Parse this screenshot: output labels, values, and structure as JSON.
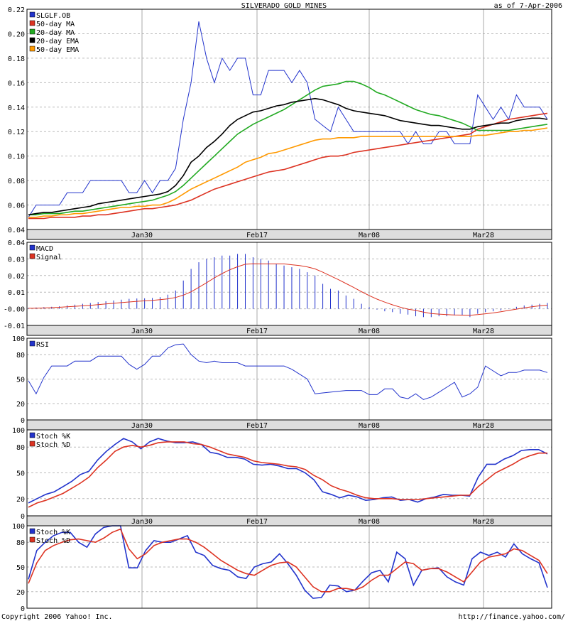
{
  "header": {
    "title": "SILVERADO GOLD MINES",
    "asof": "as of  7-Apr-2006"
  },
  "footer": {
    "copyright": "Copyright 2006 Yahoo! Inc.",
    "url": "http://finance.yahoo.com/"
  },
  "colors": {
    "price": "#2233cc",
    "ma50": "#dd3322",
    "ma20": "#22aa22",
    "ema20": "#000000",
    "ema50": "#ff9900",
    "macd": "#2233cc",
    "signal": "#dd3322",
    "stochK": "#2233cc",
    "stochD": "#dd3322",
    "rsi": "#2233cc"
  },
  "chart_data": [
    {
      "type": "line",
      "panel": "price",
      "xlabels": [
        "Jan30",
        "Feb17",
        "Mar08",
        "Mar28"
      ],
      "ylim": [
        0.04,
        0.22
      ],
      "yticks": [
        "0.22",
        "0.20",
        "0.18",
        "0.16",
        "0.14",
        "0.12",
        "0.10",
        "0.08",
        "0.06",
        "0.04"
      ],
      "series": [
        {
          "name": "SLGLF.OB",
          "key": "price",
          "values": [
            0.05,
            0.06,
            0.06,
            0.06,
            0.06,
            0.07,
            0.07,
            0.07,
            0.08,
            0.08,
            0.08,
            0.08,
            0.08,
            0.07,
            0.07,
            0.08,
            0.07,
            0.08,
            0.08,
            0.09,
            0.13,
            0.16,
            0.21,
            0.18,
            0.16,
            0.18,
            0.17,
            0.18,
            0.18,
            0.15,
            0.15,
            0.17,
            0.17,
            0.17,
            0.16,
            0.17,
            0.16,
            0.13,
            0.125,
            0.12,
            0.14,
            0.13,
            0.12,
            0.12,
            0.12,
            0.12,
            0.12,
            0.12,
            0.12,
            0.11,
            0.12,
            0.11,
            0.11,
            0.12,
            0.12,
            0.11,
            0.11,
            0.11,
            0.15,
            0.14,
            0.13,
            0.14,
            0.13,
            0.15,
            0.14,
            0.14,
            0.14,
            0.13
          ]
        },
        {
          "name": "50-day MA",
          "key": "ma50",
          "values": [
            0.049,
            0.049,
            0.049,
            0.05,
            0.05,
            0.05,
            0.05,
            0.051,
            0.051,
            0.052,
            0.052,
            0.053,
            0.054,
            0.055,
            0.056,
            0.057,
            0.057,
            0.058,
            0.059,
            0.06,
            0.062,
            0.064,
            0.067,
            0.07,
            0.073,
            0.075,
            0.077,
            0.079,
            0.081,
            0.083,
            0.085,
            0.087,
            0.088,
            0.089,
            0.091,
            0.093,
            0.095,
            0.097,
            0.099,
            0.1,
            0.1,
            0.101,
            0.103,
            0.104,
            0.105,
            0.106,
            0.107,
            0.108,
            0.109,
            0.11,
            0.111,
            0.112,
            0.113,
            0.114,
            0.115,
            0.116,
            0.117,
            0.118,
            0.122,
            0.124,
            0.126,
            0.128,
            0.13,
            0.131,
            0.132,
            0.133,
            0.134,
            0.135
          ]
        },
        {
          "name": "20-day MA",
          "key": "ma20",
          "values": [
            0.052,
            0.052,
            0.053,
            0.053,
            0.053,
            0.054,
            0.055,
            0.055,
            0.056,
            0.057,
            0.058,
            0.059,
            0.06,
            0.061,
            0.062,
            0.063,
            0.064,
            0.066,
            0.068,
            0.071,
            0.076,
            0.082,
            0.088,
            0.094,
            0.1,
            0.106,
            0.112,
            0.118,
            0.122,
            0.126,
            0.129,
            0.132,
            0.135,
            0.138,
            0.142,
            0.146,
            0.15,
            0.154,
            0.157,
            0.158,
            0.159,
            0.161,
            0.161,
            0.159,
            0.156,
            0.152,
            0.15,
            0.147,
            0.144,
            0.141,
            0.138,
            0.136,
            0.134,
            0.133,
            0.131,
            0.129,
            0.127,
            0.124,
            0.121,
            0.121,
            0.121,
            0.121,
            0.121,
            0.122,
            0.123,
            0.124,
            0.125,
            0.126
          ]
        },
        {
          "name": "20-day EMA",
          "key": "ema20",
          "values": [
            0.052,
            0.053,
            0.054,
            0.054,
            0.055,
            0.056,
            0.057,
            0.058,
            0.059,
            0.061,
            0.062,
            0.063,
            0.064,
            0.065,
            0.066,
            0.067,
            0.068,
            0.069,
            0.071,
            0.076,
            0.084,
            0.095,
            0.1,
            0.107,
            0.112,
            0.118,
            0.125,
            0.13,
            0.133,
            0.136,
            0.137,
            0.139,
            0.141,
            0.142,
            0.144,
            0.145,
            0.146,
            0.147,
            0.146,
            0.144,
            0.142,
            0.139,
            0.137,
            0.136,
            0.135,
            0.134,
            0.133,
            0.131,
            0.129,
            0.128,
            0.127,
            0.126,
            0.125,
            0.125,
            0.124,
            0.123,
            0.122,
            0.122,
            0.124,
            0.125,
            0.126,
            0.127,
            0.127,
            0.129,
            0.13,
            0.131,
            0.131,
            0.13
          ]
        },
        {
          "name": "50-day EMA",
          "key": "ema50",
          "values": [
            0.05,
            0.05,
            0.051,
            0.051,
            0.052,
            0.052,
            0.053,
            0.053,
            0.054,
            0.055,
            0.056,
            0.057,
            0.058,
            0.058,
            0.059,
            0.059,
            0.06,
            0.06,
            0.062,
            0.065,
            0.069,
            0.073,
            0.076,
            0.079,
            0.082,
            0.085,
            0.088,
            0.091,
            0.095,
            0.097,
            0.099,
            0.102,
            0.103,
            0.105,
            0.107,
            0.109,
            0.111,
            0.113,
            0.114,
            0.114,
            0.115,
            0.115,
            0.115,
            0.116,
            0.116,
            0.116,
            0.116,
            0.116,
            0.116,
            0.116,
            0.116,
            0.116,
            0.116,
            0.116,
            0.116,
            0.116,
            0.116,
            0.116,
            0.117,
            0.117,
            0.118,
            0.119,
            0.12,
            0.12,
            0.121,
            0.121,
            0.122,
            0.123
          ]
        }
      ]
    },
    {
      "type": "line",
      "panel": "macd",
      "xlabels": [
        "Jan30",
        "Feb17",
        "Mar08",
        "Mar28"
      ],
      "ylim": [
        -0.01,
        0.04
      ],
      "yticks": [
        "0.04",
        "0.03",
        "0.02",
        "0.01",
        "-0.00",
        "-0.01"
      ],
      "series": [
        {
          "name": "MACD",
          "key": "macd",
          "kind": "bars",
          "values": [
            0.0005,
            0.0008,
            0.001,
            0.0012,
            0.0015,
            0.002,
            0.0025,
            0.003,
            0.0035,
            0.004,
            0.0045,
            0.005,
            0.0055,
            0.006,
            0.0062,
            0.0063,
            0.0065,
            0.007,
            0.0085,
            0.011,
            0.017,
            0.024,
            0.028,
            0.03,
            0.031,
            0.032,
            0.032,
            0.033,
            0.033,
            0.031,
            0.03,
            0.029,
            0.027,
            0.026,
            0.025,
            0.024,
            0.022,
            0.02,
            0.015,
            0.012,
            0.011,
            0.008,
            0.006,
            0.003,
            0.001,
            -0.0005,
            -0.0015,
            -0.002,
            -0.003,
            -0.0035,
            -0.0045,
            -0.005,
            -0.005,
            -0.0045,
            -0.0045,
            -0.004,
            -0.004,
            -0.005,
            -0.003,
            -0.002,
            -0.0015,
            -0.001,
            0.0002,
            0.0012,
            0.002,
            0.0025,
            0.003,
            0.0035
          ]
        },
        {
          "name": "Signal",
          "key": "signal",
          "kind": "line",
          "values": [
            0.0003,
            0.0004,
            0.0005,
            0.0007,
            0.0009,
            0.0012,
            0.0015,
            0.0018,
            0.0021,
            0.0025,
            0.0029,
            0.0033,
            0.0037,
            0.0041,
            0.0045,
            0.0048,
            0.0051,
            0.0055,
            0.006,
            0.0068,
            0.0082,
            0.0102,
            0.0129,
            0.0157,
            0.0186,
            0.0212,
            0.0235,
            0.0253,
            0.0268,
            0.0271,
            0.027,
            0.027,
            0.027,
            0.027,
            0.0265,
            0.026,
            0.0252,
            0.024,
            0.022,
            0.0198,
            0.0176,
            0.0152,
            0.0128,
            0.0103,
            0.0079,
            0.0058,
            0.004,
            0.0024,
            0.001,
            -0.0002,
            -0.001,
            -0.002,
            -0.0028,
            -0.0032,
            -0.0035,
            -0.0037,
            -0.0038,
            -0.0039,
            -0.0035,
            -0.003,
            -0.0025,
            -0.0018,
            -0.001,
            -0.0002,
            0.0006,
            0.0012,
            0.0018,
            0.0022
          ]
        }
      ]
    },
    {
      "type": "line",
      "panel": "rsi",
      "xlabels": [
        "Jan30",
        "Feb17",
        "Mar08",
        "Mar28"
      ],
      "ylim": [
        0,
        100
      ],
      "yticks": [
        "100",
        "80",
        "50",
        "20",
        "0"
      ],
      "series": [
        {
          "name": "RSI",
          "key": "rsi",
          "values": [
            48,
            32,
            52,
            66,
            66,
            66,
            72,
            72,
            72,
            78,
            78,
            78,
            78,
            68,
            62,
            68,
            78,
            78,
            88,
            92,
            93,
            80,
            72,
            70,
            72,
            70,
            70,
            70,
            66,
            66,
            66,
            66,
            66,
            66,
            62,
            56,
            50,
            32,
            33,
            34,
            35,
            36,
            36,
            36,
            31,
            31,
            38,
            38,
            28,
            26,
            32,
            25,
            28,
            34,
            40,
            46,
            28,
            32,
            40,
            66,
            60,
            54,
            58,
            58,
            61,
            61,
            61,
            58
          ]
        }
      ]
    },
    {
      "type": "line",
      "panel": "stoch1",
      "xlabels": [
        "Jan30",
        "Feb17",
        "Mar08",
        "Mar28"
      ],
      "ylim": [
        0,
        100
      ],
      "yticks": [
        "100",
        "80",
        "50",
        "20",
        "0"
      ],
      "series": [
        {
          "name": "Stoch %K",
          "key": "stochK",
          "values": [
            15,
            20,
            25,
            28,
            34,
            40,
            48,
            52,
            65,
            75,
            83,
            90,
            86,
            78,
            86,
            90,
            87,
            85,
            85,
            86,
            83,
            74,
            72,
            68,
            68,
            66,
            60,
            59,
            60,
            58,
            55,
            55,
            50,
            42,
            28,
            25,
            21,
            24,
            22,
            18,
            19,
            21,
            22,
            18,
            19,
            16,
            20,
            22,
            25,
            24,
            24,
            23,
            45,
            60,
            60,
            66,
            70,
            76,
            77,
            77,
            72
          ]
        },
        {
          "name": "Stoch %D",
          "key": "stochD",
          "values": [
            10,
            15,
            18,
            22,
            26,
            32,
            38,
            45,
            56,
            65,
            75,
            80,
            82,
            80,
            82,
            85,
            86,
            86,
            86,
            84,
            83,
            80,
            76,
            72,
            70,
            68,
            64,
            62,
            61,
            60,
            58,
            57,
            54,
            47,
            42,
            35,
            31,
            28,
            24,
            21,
            20,
            20,
            20,
            19,
            19,
            19,
            20,
            21,
            22,
            23,
            24,
            24,
            34,
            42,
            50,
            55,
            60,
            66,
            70,
            73,
            73
          ]
        }
      ]
    },
    {
      "type": "line",
      "panel": "stoch2",
      "xlabels": [],
      "ylim": [
        0,
        100
      ],
      "yticks": [
        "100",
        "80",
        "50",
        "20",
        "0"
      ],
      "series": [
        {
          "name": "Stoch %K",
          "key": "stochK",
          "values": [
            35,
            70,
            80,
            88,
            92,
            92,
            80,
            74,
            90,
            98,
            100,
            100,
            49,
            49,
            70,
            82,
            80,
            80,
            84,
            88,
            68,
            64,
            52,
            48,
            46,
            38,
            36,
            50,
            54,
            56,
            66,
            54,
            40,
            22,
            12,
            13,
            28,
            27,
            20,
            22,
            33,
            43,
            46,
            32,
            68,
            60,
            28,
            46,
            48,
            49,
            38,
            32,
            28,
            60,
            68,
            64,
            68,
            62,
            78,
            66,
            60,
            55,
            25
          ]
        },
        {
          "name": "Stoch %D",
          "key": "stochD",
          "values": [
            30,
            55,
            70,
            76,
            80,
            83,
            84,
            82,
            80,
            85,
            92,
            96,
            72,
            60,
            66,
            76,
            80,
            82,
            84,
            84,
            80,
            74,
            66,
            58,
            52,
            46,
            42,
            40,
            46,
            52,
            55,
            56,
            50,
            38,
            26,
            20,
            20,
            24,
            24,
            22,
            26,
            34,
            40,
            40,
            48,
            56,
            54,
            46,
            48,
            48,
            44,
            38,
            32,
            44,
            56,
            62,
            64,
            66,
            72,
            70,
            64,
            58,
            42
          ]
        }
      ]
    }
  ]
}
